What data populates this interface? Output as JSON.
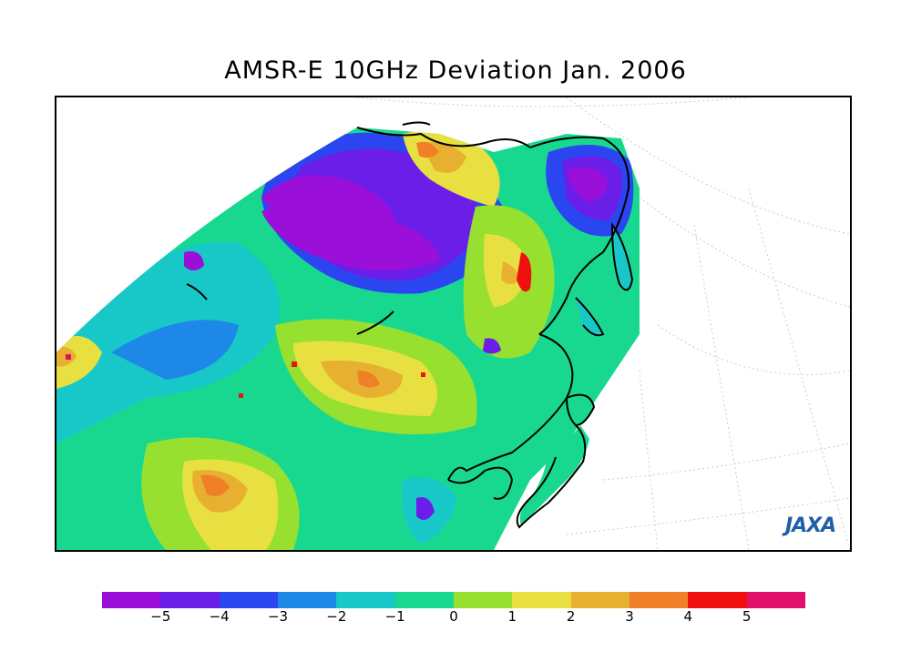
{
  "title": "AMSR-E 10GHz Deviation Jan. 2006",
  "logo_text": "JAXA",
  "colorbar": {
    "colors": [
      "#9b10d8",
      "#6a1ee8",
      "#2b45f0",
      "#1e88e8",
      "#18c8c8",
      "#18d890",
      "#98e030",
      "#e8e040",
      "#e8b030",
      "#f08028",
      "#f01010",
      "#e0106a"
    ],
    "tick_labels": [
      "−5",
      "−4",
      "−3",
      "−2",
      "−1",
      "0",
      "1",
      "2",
      "3",
      "4",
      "5"
    ]
  },
  "map": {
    "colors": {
      "purple": "#9b10d8",
      "indigo": "#6a1ee8",
      "blue": "#2b45f0",
      "sky": "#1e88e8",
      "cyan": "#18c8c8",
      "teal": "#18d890",
      "green": "#98e030",
      "yellow": "#e8e040",
      "gold": "#e8b030",
      "orange": "#f08028",
      "red": "#f01010",
      "magenta": "#e0106a",
      "coast": "#000000",
      "graticule": "#cccccc"
    }
  }
}
